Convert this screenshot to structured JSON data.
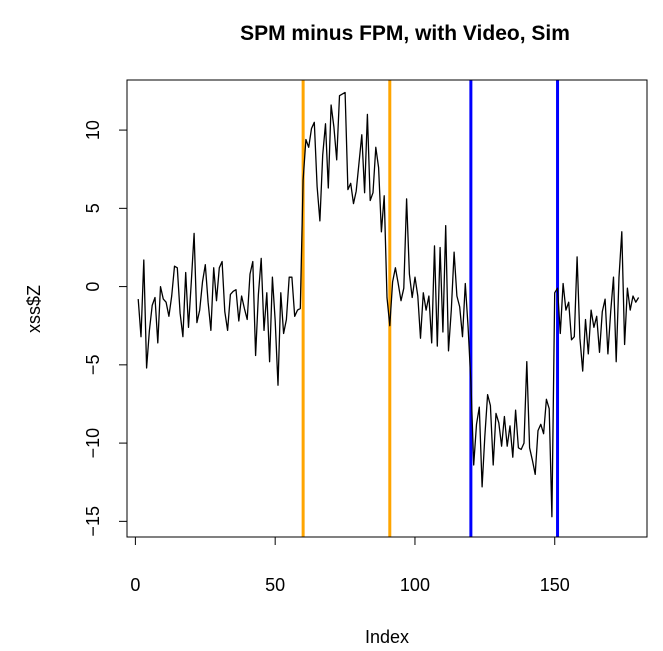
{
  "chart_data": {
    "type": "line",
    "title": "SPM minus FPM, with Video, Sim",
    "xlabel": "Index",
    "ylabel": "xss$Z",
    "xlim": [
      -3.0,
      183.0
    ],
    "ylim": [
      -16.0,
      13.2
    ],
    "xticks": [
      0,
      50,
      100,
      150
    ],
    "yticks": [
      -15,
      -10,
      -5,
      0,
      5,
      10
    ],
    "grid": false,
    "legend": "none",
    "line_color": "#000000",
    "vlines": [
      {
        "x": 60,
        "color": "#FFA500"
      },
      {
        "x": 91,
        "color": "#FFA500"
      },
      {
        "x": 120,
        "color": "#0000FF"
      },
      {
        "x": 151,
        "color": "#0000FF"
      }
    ],
    "series": [
      {
        "x": [
          1,
          2,
          3,
          4,
          5,
          6,
          7,
          8,
          9,
          10,
          11,
          12,
          13,
          14,
          15,
          16,
          17,
          18,
          19,
          20,
          21,
          22,
          23,
          24,
          25,
          26,
          27,
          28,
          29,
          30,
          31,
          32,
          33,
          34,
          35,
          36,
          37,
          38,
          39,
          40,
          41,
          42,
          43,
          44,
          45,
          46,
          47,
          48,
          49,
          50,
          51,
          52,
          53,
          54,
          55,
          56,
          57,
          58,
          59,
          60,
          61,
          62,
          63,
          64,
          65,
          66,
          67,
          68,
          69,
          70,
          71,
          72,
          73,
          74,
          75,
          76,
          77,
          78,
          79,
          80,
          81,
          82,
          83,
          84,
          85,
          86,
          87,
          88,
          89,
          90,
          91,
          92,
          93,
          94,
          95,
          96,
          97,
          98,
          99,
          100,
          101,
          102,
          103,
          104,
          105,
          106,
          107,
          108,
          109,
          110,
          111,
          112,
          113,
          114,
          115,
          116,
          117,
          118,
          119,
          120,
          121,
          122,
          123,
          124,
          125,
          126,
          127,
          128,
          129,
          130,
          131,
          132,
          133,
          134,
          135,
          136,
          137,
          138,
          139,
          140,
          141,
          142,
          143,
          144,
          145,
          146,
          147,
          148,
          149,
          150,
          151,
          152,
          153,
          154,
          155,
          156,
          157,
          158,
          159,
          160,
          161,
          162,
          163,
          164,
          165,
          166,
          167,
          168,
          169,
          170,
          171,
          172,
          173,
          174,
          175,
          176,
          177,
          178,
          179,
          180
        ],
        "y": [
          -0.8,
          -3.2,
          1.7,
          -5.2,
          -2.8,
          -1.2,
          -0.7,
          -3.6,
          0.0,
          -0.8,
          -1.0,
          -1.9,
          -0.6,
          1.3,
          1.2,
          -1.7,
          -3.2,
          0.9,
          -2.6,
          0.3,
          3.4,
          -2.3,
          -1.5,
          0.3,
          1.4,
          -1.0,
          -2.8,
          1.2,
          -0.9,
          1.2,
          1.6,
          -1.6,
          -2.8,
          -0.5,
          -0.3,
          -0.2,
          -2.2,
          -0.6,
          -1.4,
          -2.1,
          0.8,
          1.6,
          -4.4,
          -0.5,
          1.8,
          -2.8,
          -0.4,
          -4.8,
          0.6,
          -2.2,
          -6.3,
          -0.4,
          -3.0,
          -2.1,
          0.6,
          0.6,
          -1.9,
          -1.5,
          -1.4,
          6.8,
          9.4,
          8.9,
          10.1,
          10.5,
          6.4,
          4.2,
          8.4,
          10.4,
          6.3,
          11.6,
          10.2,
          8.1,
          12.2,
          12.3,
          12.4,
          6.2,
          6.6,
          5.3,
          6.1,
          7.9,
          9.7,
          6.0,
          11.0,
          5.5,
          6.0,
          8.9,
          7.6,
          3.5,
          5.8,
          -0.7,
          -2.5,
          0.3,
          1.2,
          0.2,
          -0.9,
          -0.1,
          5.6,
          0.8,
          -0.7,
          0.6,
          -0.6,
          -3.3,
          -0.4,
          -1.5,
          -0.6,
          -3.6,
          2.6,
          -3.8,
          2.5,
          -2.9,
          3.9,
          -4.1,
          -1.5,
          2.2,
          -0.6,
          -1.3,
          -3.2,
          0.2,
          -2.6,
          -6.1,
          -11.4,
          -8.8,
          -7.7,
          -12.8,
          -9.6,
          -6.9,
          -7.6,
          -11.4,
          -8.1,
          -8.7,
          -10.2,
          -8.3,
          -10.2,
          -8.9,
          -10.9,
          -7.9,
          -10.3,
          -10.4,
          -10.0,
          -4.8,
          -10.3,
          -11.1,
          -12.0,
          -9.2,
          -8.8,
          -9.4,
          -7.2,
          -7.8,
          -14.7,
          -0.4,
          -0.1,
          -3.0,
          0.2,
          -1.5,
          -1.0,
          -3.4,
          -3.2,
          1.9,
          -3.3,
          -5.4,
          -2.1,
          -4.3,
          -1.5,
          -2.6,
          -1.9,
          -4.2,
          -1.6,
          -0.8,
          -4.3,
          -1.6,
          0.6,
          -4.8,
          0.6,
          3.5,
          -3.7,
          -0.1,
          -1.5,
          -0.6,
          -1.0,
          -0.7
        ]
      }
    ]
  }
}
